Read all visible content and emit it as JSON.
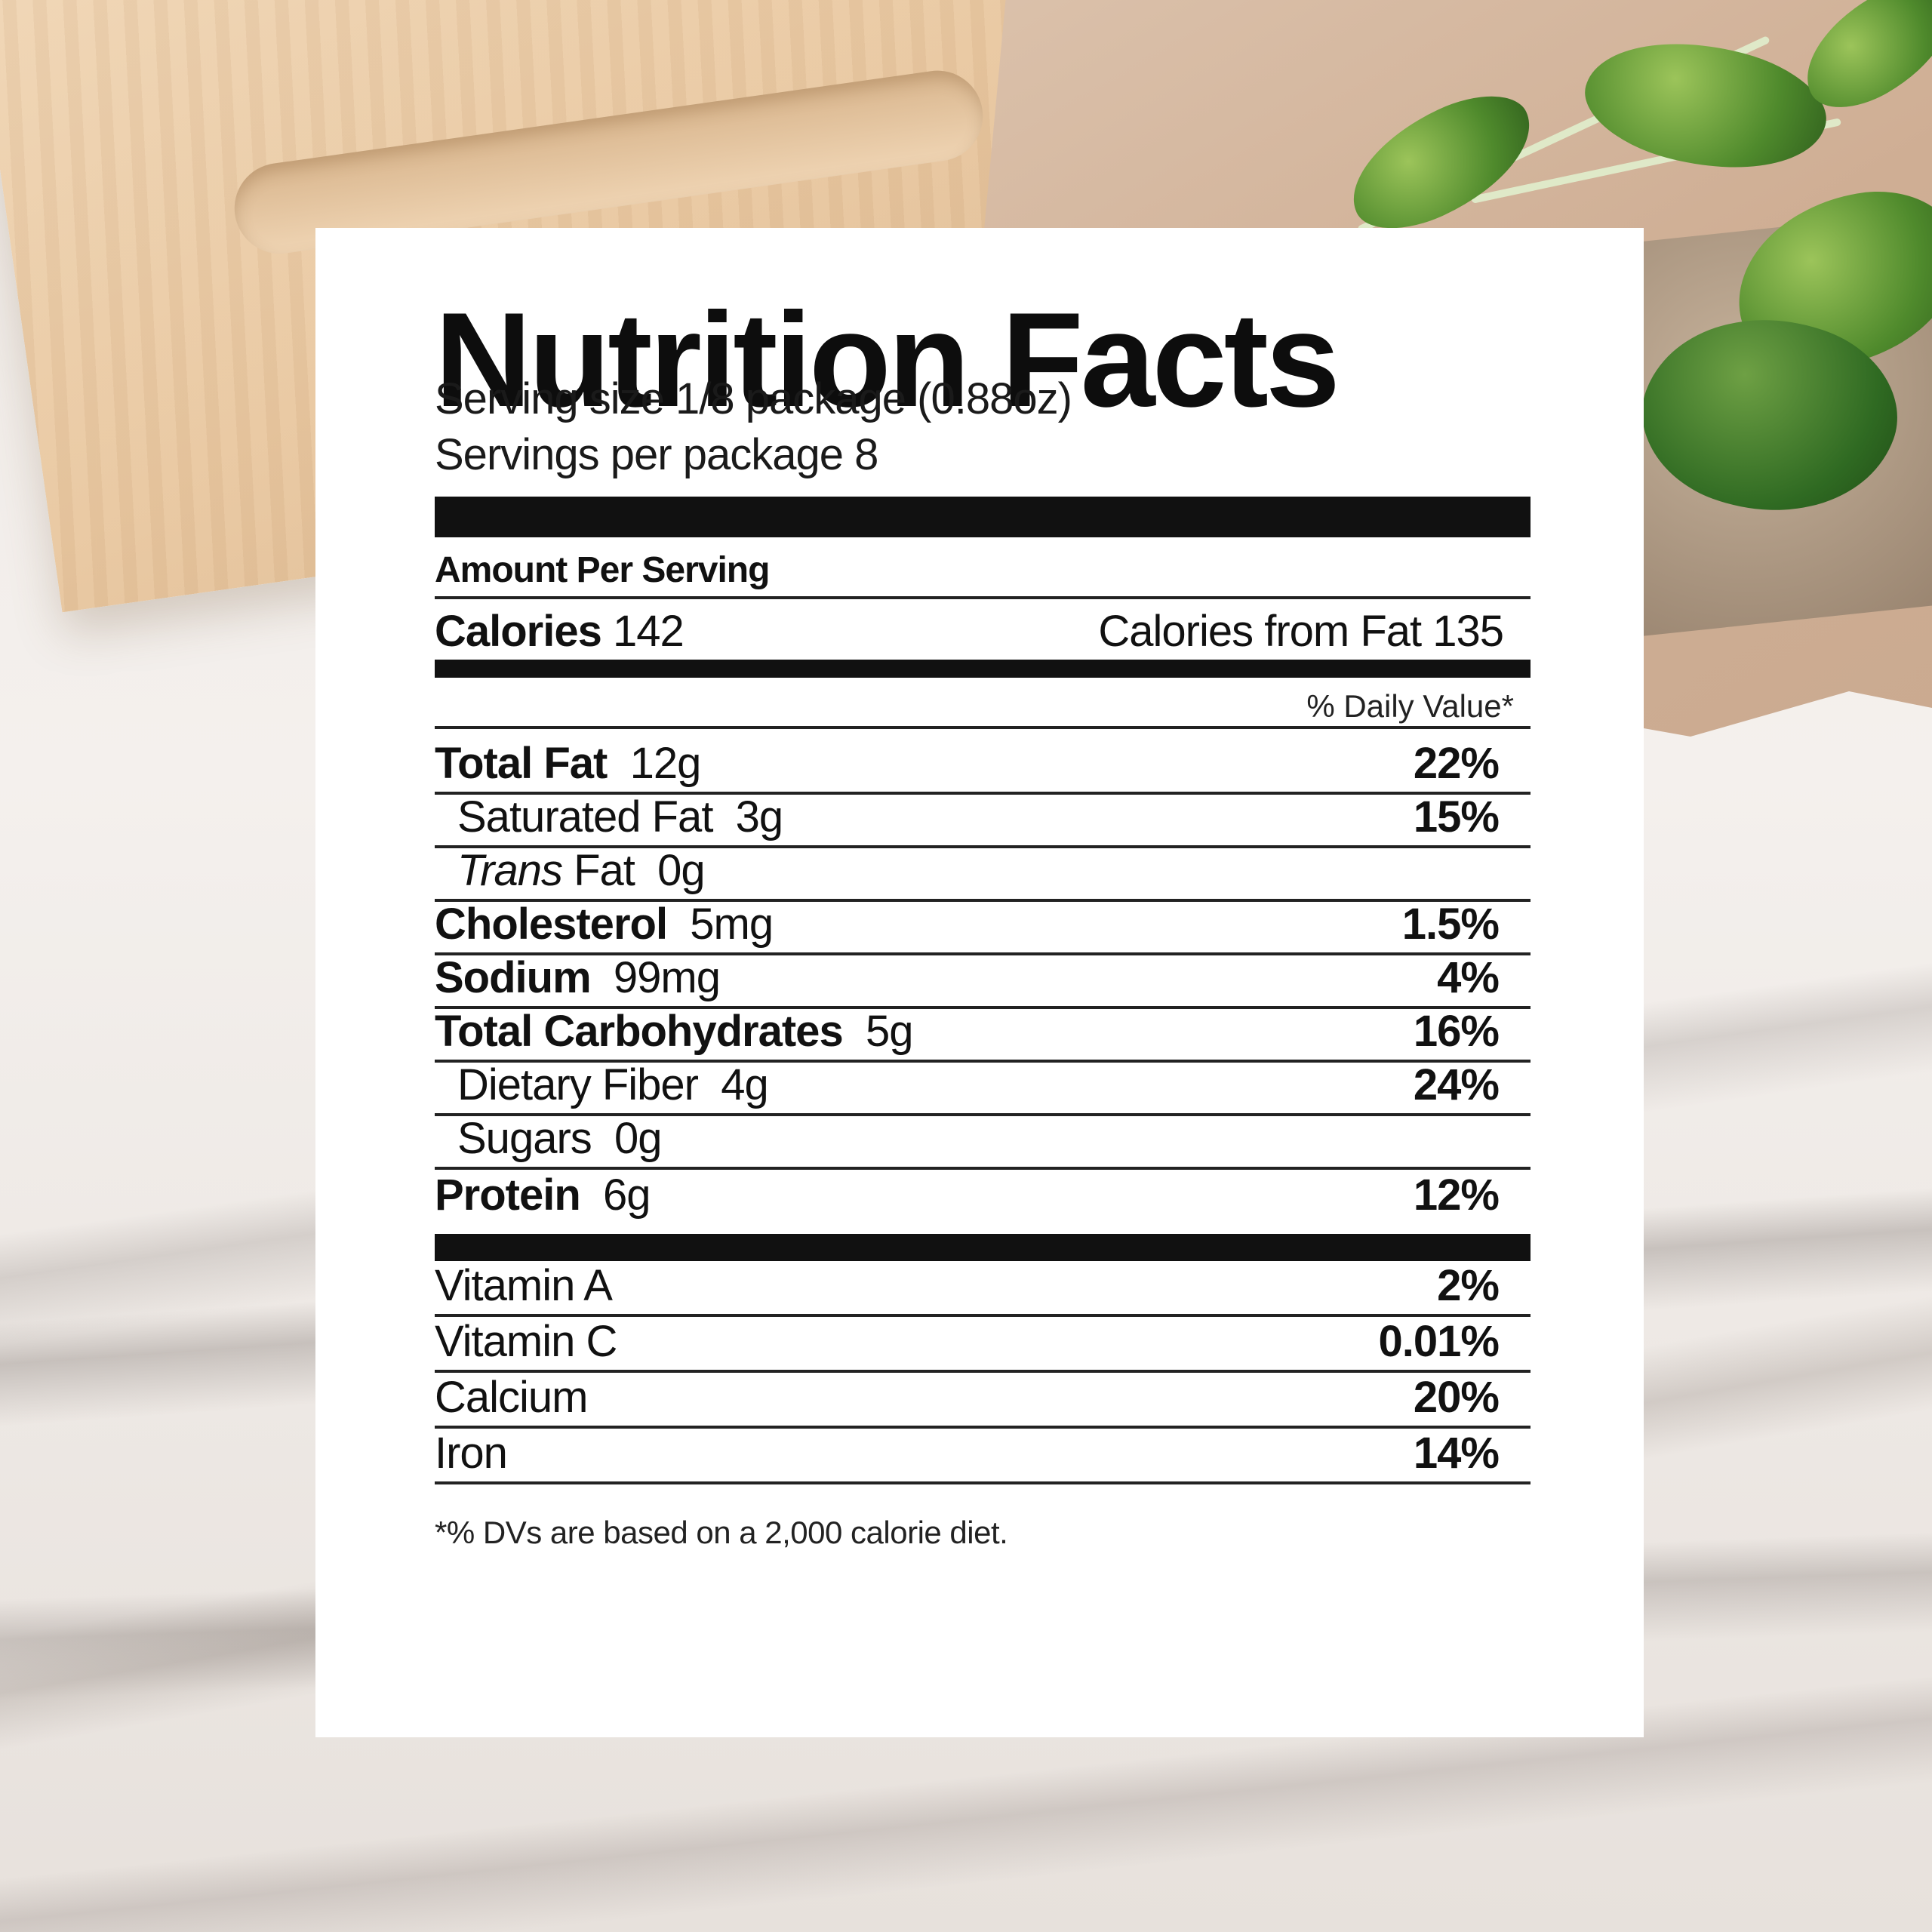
{
  "label": {
    "title": "Nutrition Facts",
    "serving_size": "Serving size 1/8 package (0.88oz)",
    "servings_per_package": "Servings per package 8",
    "amount_per_serving": "Amount Per Serving",
    "calories": {
      "label": "Calories",
      "value": "142"
    },
    "calories_from_fat": "Calories from Fat 135",
    "daily_value_header": "% Daily Value*",
    "nutrients": [
      {
        "label": "Total Fat",
        "amount": "12g",
        "pct": "22%"
      },
      {
        "label": "Saturated Fat",
        "amount": "3g",
        "pct": "15%"
      },
      {
        "label_italic": "Trans",
        "label": "Fat",
        "amount": "0g",
        "pct": ""
      },
      {
        "label": "Cholesterol",
        "amount": "5mg",
        "pct": "1.5%"
      },
      {
        "label": "Sodium",
        "amount": "99mg",
        "pct": "4%"
      },
      {
        "label": "Total Carbohydrates",
        "amount": "5g",
        "pct": "16%"
      },
      {
        "label": "Dietary Fiber",
        "amount": "4g",
        "pct": "24%"
      },
      {
        "label": "Sugars",
        "amount": "0g",
        "pct": ""
      },
      {
        "label": "Protein",
        "amount": "6g",
        "pct": "12%"
      }
    ],
    "vitamins": [
      {
        "label": "Vitamin A",
        "pct": "2%"
      },
      {
        "label": "Vitamin C",
        "pct": "0.01%"
      },
      {
        "label": "Calcium",
        "pct": "20%"
      },
      {
        "label": "Iron",
        "pct": "14%"
      }
    ],
    "footnote": "*% DVs are based on a 2,000 calorie diet."
  }
}
